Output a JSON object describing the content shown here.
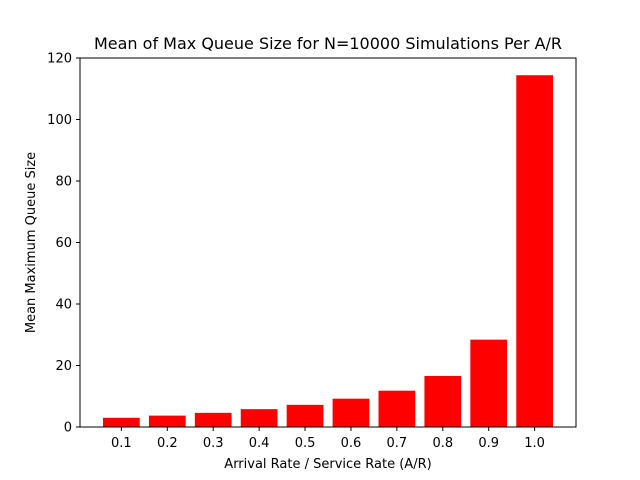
{
  "chart_data": {
    "type": "bar",
    "title": "Mean of Max Queue Size for N=10000 Simulations Per A/R",
    "xlabel": "Arrival Rate / Service Rate (A/R)",
    "ylabel": "Mean Maximum Queue Size",
    "categories": [
      "0.1",
      "0.2",
      "0.3",
      "0.4",
      "0.5",
      "0.6",
      "0.7",
      "0.8",
      "0.9",
      "1.0"
    ],
    "values": [
      3.0,
      3.7,
      4.6,
      5.8,
      7.2,
      9.2,
      11.8,
      16.6,
      28.4,
      114.4
    ],
    "ylim": [
      0,
      120
    ],
    "yticks": [
      0,
      20,
      40,
      60,
      80,
      100,
      120
    ],
    "bar_color": "#ff0000",
    "grid": false,
    "legend": "none"
  }
}
